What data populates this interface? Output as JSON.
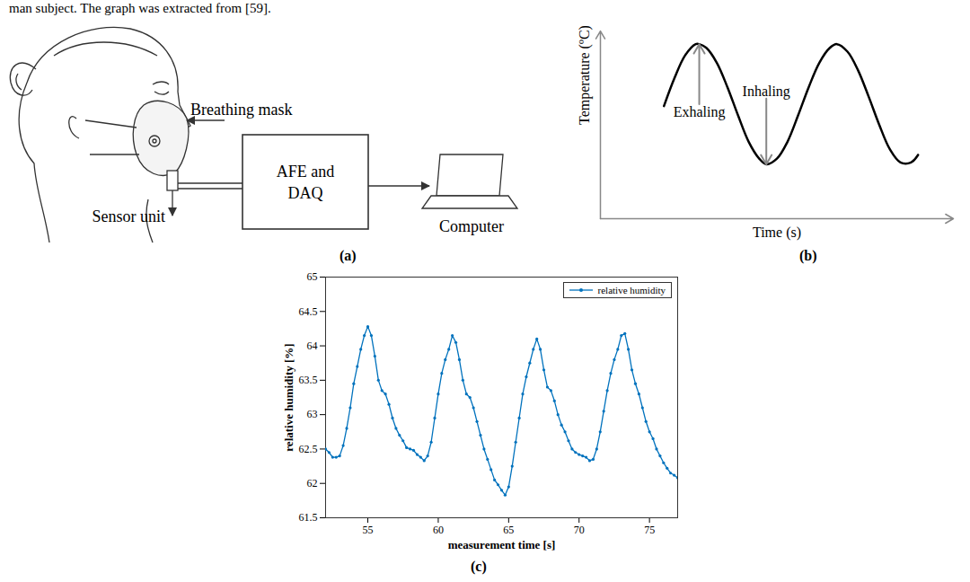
{
  "caption": "man subject. The graph was extracted from [59].",
  "diagram": {
    "label": "(a)",
    "nodes": [
      {
        "id": "mask",
        "label": "Breathing mask"
      },
      {
        "id": "sensor",
        "label": "Sensor unit"
      },
      {
        "id": "afe",
        "label": "AFE and DAQ"
      },
      {
        "id": "computer",
        "label": "Computer"
      }
    ]
  },
  "chart_data": [
    {
      "label": "(b)",
      "type": "line",
      "x_label": "Time (s)",
      "y_label": "Temperature (ºC)",
      "tick_labels": false,
      "grid": false,
      "color": "#000000",
      "xlim": [
        0,
        100
      ],
      "ylim": [
        0,
        100
      ],
      "x": [
        18,
        21,
        24,
        27,
        28,
        30,
        33,
        36,
        39,
        42,
        45,
        47,
        50,
        53,
        56,
        59,
        62,
        65,
        67,
        70,
        73,
        76,
        79,
        82,
        85,
        88,
        90
      ],
      "values": [
        60,
        75,
        87,
        93,
        93,
        91,
        83,
        70,
        55,
        41,
        32,
        29,
        32,
        41,
        55,
        70,
        83,
        91,
        93,
        89,
        79,
        65,
        50,
        37,
        30,
        30,
        34
      ],
      "annotations": [
        {
          "text": "Exhaling",
          "x": 28,
          "y": 93
        },
        {
          "text": "Inhaling",
          "x": 47,
          "y": 29
        }
      ]
    },
    {
      "label": "(c)",
      "type": "line",
      "x_label": "measurement time [s]",
      "y_label": "relative humidity [%]",
      "grid": false,
      "legend": "upper right",
      "xlim": [
        52,
        77
      ],
      "xticks": [
        55,
        60,
        65,
        70,
        75
      ],
      "ylim": [
        61.5,
        65
      ],
      "yticks": [
        61.5,
        62,
        62.5,
        63,
        63.5,
        64,
        64.5,
        65
      ],
      "x": [
        52,
        52.25,
        52.5,
        52.75,
        53,
        53.25,
        53.5,
        53.75,
        54,
        54.25,
        54.5,
        54.75,
        55,
        55.25,
        55.5,
        55.75,
        56,
        56.25,
        56.5,
        56.75,
        57,
        57.25,
        57.5,
        57.75,
        58,
        58.25,
        58.5,
        58.75,
        59,
        59.25,
        59.5,
        59.75,
        60,
        60.25,
        60.5,
        60.75,
        61,
        61.25,
        61.5,
        61.75,
        62,
        62.25,
        62.5,
        62.75,
        63,
        63.25,
        63.5,
        63.75,
        64,
        64.25,
        64.5,
        64.75,
        65,
        65.25,
        65.5,
        65.75,
        66,
        66.25,
        66.5,
        66.75,
        67,
        67.25,
        67.5,
        67.75,
        68,
        68.25,
        68.5,
        68.75,
        69,
        69.25,
        69.5,
        69.75,
        70,
        70.25,
        70.5,
        70.75,
        71,
        71.25,
        71.5,
        71.75,
        72,
        72.25,
        72.5,
        72.75,
        73,
        73.25,
        73.5,
        73.75,
        74,
        74.25,
        74.5,
        74.75,
        75,
        75.25,
        75.5,
        75.75,
        76,
        76.25,
        76.5,
        76.75,
        77
      ],
      "series": [
        {
          "name": "relative humidity",
          "color": "#0072bd",
          "marker": "dot",
          "line_style": "solid",
          "values": [
            62.5,
            62.45,
            62.38,
            62.38,
            62.4,
            62.55,
            62.8,
            63.1,
            63.45,
            63.7,
            63.95,
            64.15,
            64.28,
            64.15,
            63.85,
            63.5,
            63.35,
            63.3,
            63.15,
            62.95,
            62.8,
            62.7,
            62.62,
            62.52,
            62.5,
            62.48,
            62.42,
            62.38,
            62.33,
            62.4,
            62.6,
            62.95,
            63.3,
            63.6,
            63.8,
            63.95,
            64.15,
            64.05,
            63.8,
            63.5,
            63.3,
            63.25,
            63.1,
            62.9,
            62.7,
            62.5,
            62.35,
            62.2,
            62.05,
            61.98,
            61.9,
            61.83,
            61.95,
            62.25,
            62.6,
            62.95,
            63.3,
            63.55,
            63.75,
            63.95,
            64.1,
            63.95,
            63.65,
            63.4,
            63.35,
            63.2,
            63,
            62.85,
            62.75,
            62.62,
            62.5,
            62.45,
            62.42,
            62.4,
            62.38,
            62.33,
            62.35,
            62.5,
            62.75,
            63.05,
            63.35,
            63.6,
            63.8,
            63.95,
            64.15,
            64.18,
            63.95,
            63.65,
            63.45,
            63.3,
            63.1,
            62.9,
            62.75,
            62.65,
            62.5,
            62.4,
            62.3,
            62.22,
            62.15,
            62.12,
            62.08
          ]
        }
      ]
    }
  ]
}
